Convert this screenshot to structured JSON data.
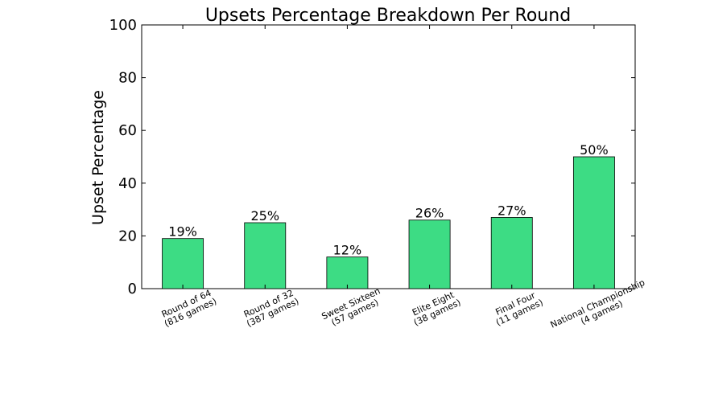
{
  "chart_data": {
    "type": "bar",
    "title": "Upsets Percentage Breakdown Per Round",
    "xlabel": "",
    "ylabel": "Upset Percentage",
    "ylim": [
      0,
      100
    ],
    "yticks": [
      0,
      20,
      40,
      60,
      80,
      100
    ],
    "grid": false,
    "bar_color": "#3ddc84",
    "categories": [
      [
        "Round of 64",
        "(816 games)"
      ],
      [
        "Round of 32",
        "(387 games)"
      ],
      [
        "Sweet Sixteen",
        "(57 games)"
      ],
      [
        "Elite Eight",
        "(38 games)"
      ],
      [
        "Final Four",
        "(11 games)"
      ],
      [
        "National Championship",
        "(4 games)"
      ]
    ],
    "values": [
      19,
      25,
      12,
      26,
      27,
      50
    ],
    "data_labels": [
      "19%",
      "25%",
      "12%",
      "26%",
      "27%",
      "50%"
    ]
  }
}
